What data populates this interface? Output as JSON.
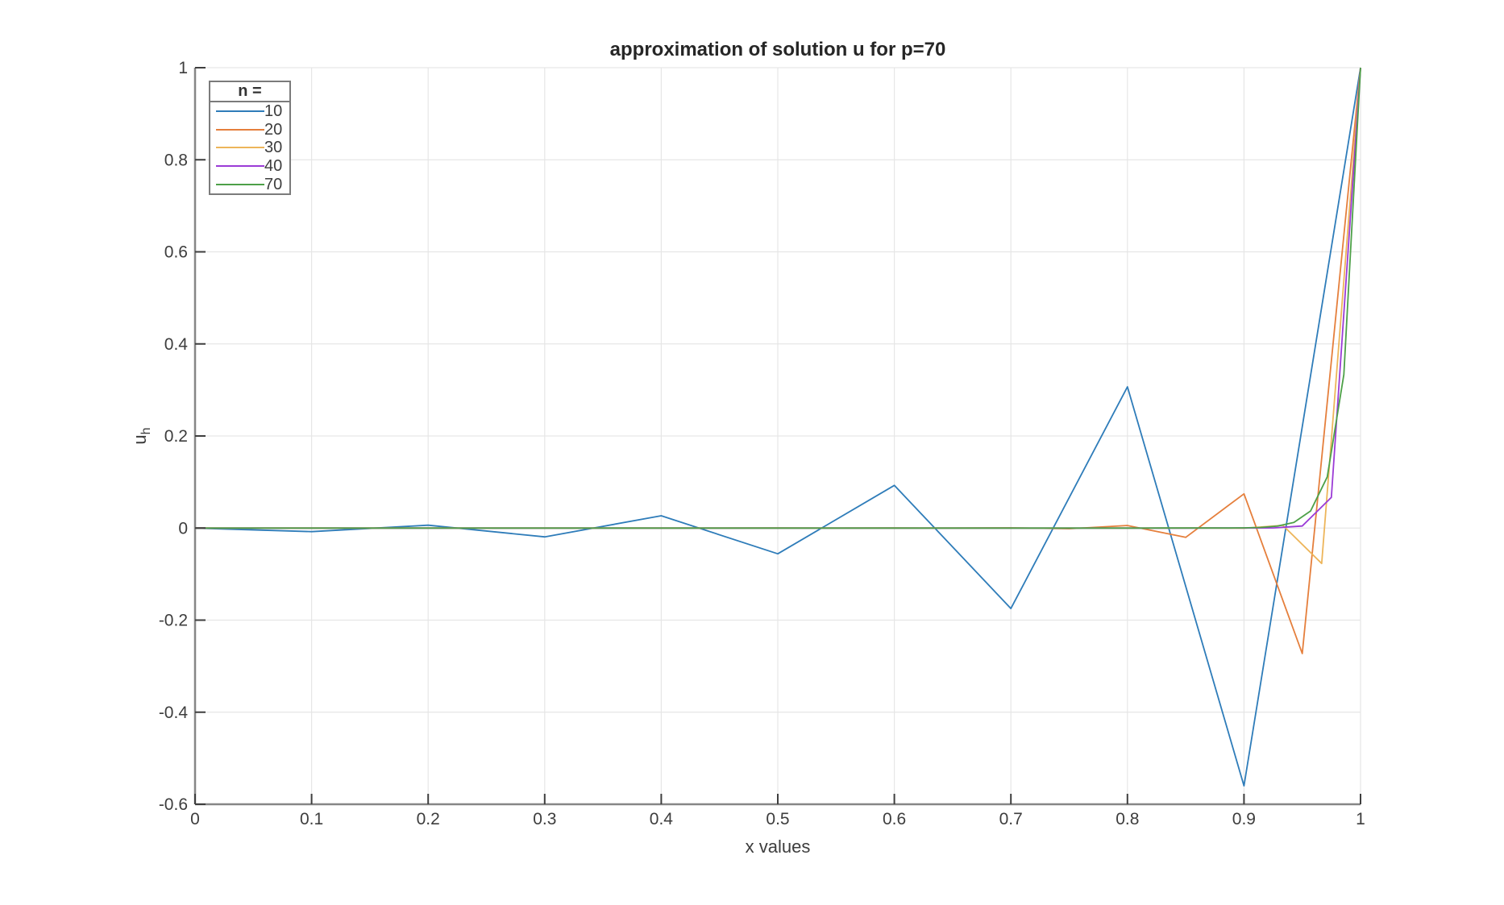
{
  "chart_data": {
    "type": "line",
    "title": "approximation of solution u for p=70",
    "xlabel": "x values",
    "ylabel_main": "u",
    "ylabel_sub": "h",
    "grid": true,
    "background_color": "#ffffff",
    "axis_spine_color": "#868686",
    "tick_color": "#3e3e3e",
    "grid_color": "#e6e6e6",
    "text_color": "#3d3d3d",
    "x_axis": {
      "min": 0,
      "max": 1,
      "tick_values": [
        0,
        0.1,
        0.2,
        0.3,
        0.4,
        0.5,
        0.6,
        0.7,
        0.8,
        0.9,
        1
      ],
      "tick_labels": [
        "0",
        "0.1",
        "0.2",
        "0.3",
        "0.4",
        "0.5",
        "0.6",
        "0.7",
        "0.8",
        "0.9",
        "1"
      ]
    },
    "y_axis": {
      "min": -0.6,
      "max": 1,
      "tick_values": [
        -0.6,
        -0.4,
        -0.2,
        0,
        0.2,
        0.4,
        0.6,
        0.8,
        1
      ],
      "tick_labels": [
        "-0.6",
        "-0.4",
        "-0.2",
        "0",
        "0.2",
        "0.4",
        "0.6",
        "0.8",
        "1"
      ]
    },
    "legend": {
      "title": "n =",
      "position": "top-left",
      "entries": [
        "10",
        "20",
        "30",
        "40",
        "70"
      ]
    },
    "x_rule": "each series is sampled uniformly on [0,1]: x_i = i/n",
    "series": [
      {
        "name": "10",
        "color": "#2e7cb9",
        "x": [
          0,
          0.1,
          0.2,
          0.3,
          0.4,
          0.5,
          0.6,
          0.7,
          0.8,
          0.9,
          1
        ],
        "y": [
          0,
          -0.007864,
          0.006291,
          -0.019189,
          0.026675,
          -0.05588,
          0.092719,
          -0.174758,
          0.3067,
          -0.559925,
          1
        ]
      },
      {
        "name": "20",
        "color": "#e57f3c",
        "x": [
          0,
          0.05,
          0.1,
          0.15,
          0.2,
          0.25,
          0.3,
          0.35,
          0.4,
          0.45,
          0.5,
          0.55,
          0.6,
          0.65,
          0.7,
          0.75,
          0.8,
          0.85,
          0.9,
          0.95,
          1
        ],
        "y": [
          0,
          0,
          0,
          0,
          0,
          0,
          0,
          0,
          0,
          -1e-06,
          2e-06,
          -8e-06,
          3.1e-05,
          -0.000112,
          0.000412,
          -0.001509,
          0.005533,
          -0.020285,
          0.07438,
          -0.272727,
          1
        ]
      },
      {
        "name": "30",
        "color": "#edb55a",
        "x": [
          0,
          0.033333,
          0.066667,
          0.1,
          0.133333,
          0.166667,
          0.2,
          0.233333,
          0.266667,
          0.3,
          0.333333,
          0.366667,
          0.4,
          0.433333,
          0.466667,
          0.5,
          0.533333,
          0.566667,
          0.6,
          0.633333,
          0.666667,
          0.7,
          0.733333,
          0.766667,
          0.8,
          0.833333,
          0.866667,
          0.9,
          0.933333,
          0.966667,
          1
        ],
        "y": [
          0,
          0,
          0,
          0,
          0,
          0,
          0,
          0,
          0,
          0,
          0,
          0,
          0,
          0,
          0,
          0,
          0,
          0,
          0,
          0,
          0,
          0,
          0,
          0,
          0,
          -3e-06,
          3.5e-05,
          -0.000455,
          0.005917,
          -0.076923,
          1
        ]
      },
      {
        "name": "40",
        "color": "#9b3bd6",
        "x": [
          0,
          0.025,
          0.05,
          0.075,
          0.1,
          0.125,
          0.15,
          0.175,
          0.2,
          0.225,
          0.25,
          0.275,
          0.3,
          0.325,
          0.35,
          0.375,
          0.4,
          0.425,
          0.45,
          0.475,
          0.5,
          0.525,
          0.55,
          0.575,
          0.6,
          0.625,
          0.65,
          0.675,
          0.7,
          0.725,
          0.75,
          0.775,
          0.8,
          0.825,
          0.85,
          0.875,
          0.9,
          0.925,
          0.95,
          0.975,
          1
        ],
        "y": [
          0,
          0,
          0,
          0,
          0,
          0,
          0,
          0,
          0,
          0,
          0,
          0,
          0,
          0,
          0,
          0,
          0,
          0,
          0,
          0,
          0,
          0,
          0,
          0,
          0,
          0,
          0,
          0,
          0,
          0,
          0,
          0,
          0,
          0,
          0,
          1e-06,
          2e-05,
          0.000296,
          0.004444,
          0.066667,
          1
        ]
      },
      {
        "name": "70",
        "color": "#4da048",
        "x": [
          0,
          0.014286,
          0.028571,
          0.042857,
          0.057143,
          0.071429,
          0.085714,
          0.1,
          0.114286,
          0.128571,
          0.142857,
          0.157143,
          0.171429,
          0.185714,
          0.2,
          0.214286,
          0.228571,
          0.242857,
          0.257143,
          0.271429,
          0.285714,
          0.3,
          0.314286,
          0.328571,
          0.342857,
          0.357143,
          0.371429,
          0.385714,
          0.4,
          0.414286,
          0.428571,
          0.442857,
          0.457143,
          0.471429,
          0.485714,
          0.5,
          0.514286,
          0.528571,
          0.542857,
          0.557143,
          0.571429,
          0.585714,
          0.6,
          0.614286,
          0.628571,
          0.642857,
          0.657143,
          0.671429,
          0.685714,
          0.7,
          0.714286,
          0.728571,
          0.742857,
          0.757143,
          0.771429,
          0.785714,
          0.8,
          0.814286,
          0.828571,
          0.842857,
          0.857143,
          0.871429,
          0.885714,
          0.9,
          0.914286,
          0.928571,
          0.942857,
          0.957143,
          0.971429,
          0.985714,
          1
        ],
        "y": [
          0,
          0,
          0,
          0,
          0,
          0,
          0,
          0,
          0,
          0,
          0,
          0,
          0,
          0,
          0,
          0,
          0,
          0,
          0,
          0,
          0,
          0,
          0,
          0,
          0,
          0,
          0,
          0,
          0,
          0,
          0,
          0,
          0,
          0,
          0,
          0,
          0,
          0,
          0,
          0,
          0,
          0,
          0,
          0,
          0,
          0,
          0,
          0,
          0,
          0,
          0,
          0,
          0,
          0,
          0,
          0,
          0,
          0,
          2e-06,
          6e-06,
          1.7e-05,
          5.1e-05,
          0.000152,
          0.000457,
          0.001372,
          0.004115,
          0.012346,
          0.037037,
          0.111111,
          0.333333,
          1
        ]
      }
    ]
  }
}
